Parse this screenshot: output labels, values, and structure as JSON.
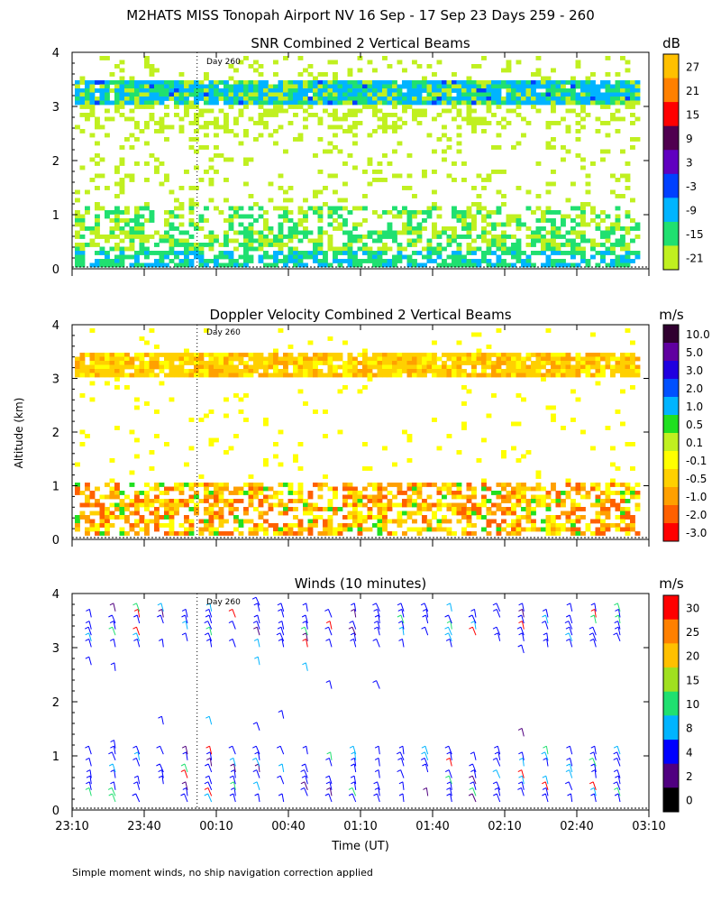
{
  "figure": {
    "title": "M2HATS MISS Tonopah Airport NV  16 Sep - 17 Sep 23 Days 259 - 260",
    "xlabel": "Time (UT)",
    "ylabel": "Altitude (km)",
    "footnote": "Simple moment winds, no ship navigation correction applied",
    "day_marker": "Day 260"
  },
  "chart_data": [
    {
      "type": "heatmap",
      "title": "SNR Combined 2 Vertical Beams",
      "units": "dB",
      "ylim": [
        0,
        4
      ],
      "yticks": [
        "0",
        "1",
        "2",
        "3",
        "4"
      ],
      "x_time_range": [
        "23:10",
        "03:10"
      ],
      "day_marker_time": "00:02",
      "colorbar": [
        {
          "label": "27",
          "color": "#ffc000"
        },
        {
          "label": "21",
          "color": "#ff8000"
        },
        {
          "label": "15",
          "color": "#ff0000"
        },
        {
          "label": "9",
          "color": "#500050"
        },
        {
          "label": "3",
          "color": "#6000c0"
        },
        {
          "label": "-3",
          "color": "#0040ff"
        },
        {
          "label": "-9",
          "color": "#00b4ff"
        },
        {
          "label": "-15",
          "color": "#20e070"
        },
        {
          "label": "-21",
          "color": "#c0f020"
        }
      ],
      "features": [
        {
          "name": "upper layer",
          "from_km": 3.1,
          "to_km": 3.5,
          "typical_dB": -9
        },
        {
          "name": "boundary layer",
          "from_km": 0.1,
          "to_km": 1.2,
          "typical_dB": -15
        }
      ]
    },
    {
      "type": "heatmap",
      "title": "Doppler Velocity Combined 2 Vertical Beams",
      "units": "m/s",
      "ylim": [
        0,
        4
      ],
      "yticks": [
        "0",
        "1",
        "2",
        "3",
        "4"
      ],
      "x_time_range": [
        "23:10",
        "03:10"
      ],
      "day_marker_time": "00:02",
      "colorbar": [
        {
          "label": "10.0",
          "color": "#300030"
        },
        {
          "label": "5.0",
          "color": "#6000a0"
        },
        {
          "label": "3.0",
          "color": "#2000e0"
        },
        {
          "label": "2.0",
          "color": "#0050ff"
        },
        {
          "label": "1.0",
          "color": "#00b4ff"
        },
        {
          "label": "0.5",
          "color": "#20e020"
        },
        {
          "label": "0.1",
          "color": "#c0f020"
        },
        {
          "label": "-0.1",
          "color": "#ffff00"
        },
        {
          "label": "-0.5",
          "color": "#ffd000"
        },
        {
          "label": "-1.0",
          "color": "#ffa000"
        },
        {
          "label": "-2.0",
          "color": "#ff6000"
        },
        {
          "label": "-3.0",
          "color": "#ff0000"
        }
      ]
    },
    {
      "type": "scatter",
      "title": "Winds (10 minutes)",
      "units": "m/s",
      "ylim": [
        0,
        4
      ],
      "yticks": [
        "0",
        "1",
        "2",
        "3",
        "4"
      ],
      "xticks": [
        "23:10",
        "23:40",
        "00:10",
        "00:40",
        "01:10",
        "01:40",
        "02:10",
        "02:40",
        "03:10"
      ],
      "x_time_range": [
        "23:10",
        "03:10"
      ],
      "day_marker_time": "00:02",
      "colorbar": [
        {
          "label": "30",
          "color": "#ff0000"
        },
        {
          "label": "25",
          "color": "#ff8000"
        },
        {
          "label": "20",
          "color": "#ffc000"
        },
        {
          "label": "15",
          "color": "#a0e020"
        },
        {
          "label": "10",
          "color": "#20e070"
        },
        {
          "label": "8",
          "color": "#00b4ff"
        },
        {
          "label": "4",
          "color": "#0000ff"
        },
        {
          "label": "2",
          "color": "#500080"
        },
        {
          "label": "0",
          "color": "#000000"
        }
      ]
    }
  ]
}
